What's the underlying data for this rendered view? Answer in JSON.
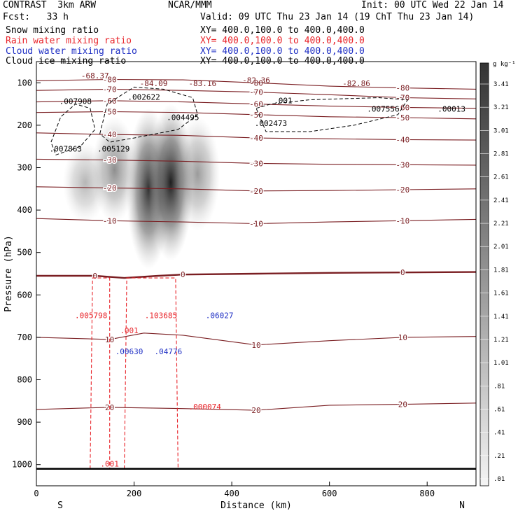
{
  "header": {
    "model": "CONTRAST  3km ARW",
    "org": "NCAR/MMM",
    "init": "Init: 00 UTC Wed 22 Jan 14",
    "fcst": "Fcst:   33 h",
    "valid": "Valid: 09 UTC Thu 23 Jan 14 (19 ChT Thu 23 Jan 14)"
  },
  "fields": [
    {
      "name": "Snow mixing ratio",
      "xy": "XY= 400.0,100.0 to 400.0,400.0",
      "color": "#000000"
    },
    {
      "name": "Rain water mixing ratio",
      "xy": "XY= 400.0,100.0 to 400.0,400.0",
      "color": "#e8242a"
    },
    {
      "name": "Cloud water mixing ratio",
      "xy": "XY= 400.0,100.0 to 400.0,400.0",
      "color": "#1f2fc4"
    },
    {
      "name": "Cloud ice mixing ratio",
      "xy": "XY= 400.0,100.0 to 400.0,400.0",
      "color": "#000000"
    }
  ],
  "chart_data": {
    "type": "heatmap",
    "xlabel": "Distance (km)",
    "ylabel": "Pressure (hPa)",
    "x_ticks": [
      0,
      200,
      400,
      600,
      800
    ],
    "y_ticks": [
      100,
      200,
      300,
      400,
      500,
      600,
      700,
      800,
      900,
      1000
    ],
    "xlim": [
      0,
      900
    ],
    "ylim": [
      1050,
      50
    ],
    "x_end_labels": {
      "left": "S",
      "right": "N"
    },
    "colorbar": {
      "unit": "g kg⁻¹",
      "labels": [
        "3.41",
        "3.21",
        "3.01",
        "2.81",
        "2.61",
        "2.41",
        "2.21",
        "2.01",
        "1.81",
        "1.61",
        "1.41",
        "1.21",
        "1.01",
        ".81",
        ".61",
        ".41",
        ".21",
        ".01"
      ]
    },
    "snow_cores": [
      {
        "x": 100,
        "p_top": 240,
        "p_bottom": 430,
        "peak": 0.6
      },
      {
        "x": 160,
        "p_top": 180,
        "p_bottom": 430,
        "peak": 1.2
      },
      {
        "x": 230,
        "p_top": 160,
        "p_bottom": 540,
        "peak": 2.6
      },
      {
        "x": 275,
        "p_top": 150,
        "p_bottom": 520,
        "peak": 3.2
      },
      {
        "x": 330,
        "p_top": 180,
        "p_bottom": 450,
        "peak": 1.0
      }
    ],
    "temperature_contours": [
      {
        "label": "-80",
        "points": [
          [
            0,
            95
          ],
          [
            150,
            92
          ],
          [
            300,
            93
          ],
          [
            450,
            100
          ],
          [
            600,
            108
          ],
          [
            750,
            112
          ],
          [
            900,
            115
          ]
        ]
      },
      {
        "label": "-70",
        "points": [
          [
            0,
            118
          ],
          [
            150,
            115
          ],
          [
            300,
            118
          ],
          [
            450,
            122
          ],
          [
            600,
            128
          ],
          [
            750,
            135
          ],
          [
            900,
            138
          ]
        ]
      },
      {
        "label": "-60",
        "points": [
          [
            0,
            145
          ],
          [
            150,
            142
          ],
          [
            300,
            145
          ],
          [
            450,
            150
          ],
          [
            600,
            155
          ],
          [
            750,
            158
          ],
          [
            900,
            160
          ]
        ]
      },
      {
        "label": "-50",
        "points": [
          [
            0,
            170
          ],
          [
            150,
            168
          ],
          [
            300,
            170
          ],
          [
            450,
            175
          ],
          [
            600,
            180
          ],
          [
            750,
            182
          ],
          [
            900,
            185
          ]
        ]
      },
      {
        "label": "-40",
        "points": [
          [
            0,
            218
          ],
          [
            150,
            222
          ],
          [
            300,
            224
          ],
          [
            450,
            230
          ],
          [
            600,
            232
          ],
          [
            750,
            234
          ],
          [
            900,
            235
          ]
        ]
      },
      {
        "label": "-30",
        "points": [
          [
            0,
            280
          ],
          [
            150,
            282
          ],
          [
            300,
            285
          ],
          [
            450,
            290
          ],
          [
            600,
            292
          ],
          [
            750,
            293
          ],
          [
            900,
            294
          ]
        ]
      },
      {
        "label": "-20",
        "points": [
          [
            0,
            345
          ],
          [
            150,
            348
          ],
          [
            300,
            350
          ],
          [
            450,
            355
          ],
          [
            600,
            354
          ],
          [
            750,
            352
          ],
          [
            900,
            350
          ]
        ]
      },
      {
        "label": "-10",
        "points": [
          [
            0,
            420
          ],
          [
            150,
            425
          ],
          [
            300,
            428
          ],
          [
            450,
            432
          ],
          [
            600,
            428
          ],
          [
            750,
            425
          ],
          [
            900,
            422
          ]
        ]
      },
      {
        "label": "0",
        "points": [
          [
            0,
            555
          ],
          [
            120,
            555
          ],
          [
            180,
            560
          ],
          [
            250,
            555
          ],
          [
            300,
            552
          ],
          [
            450,
            550
          ],
          [
            600,
            548
          ],
          [
            750,
            547
          ],
          [
            900,
            546
          ]
        ]
      },
      {
        "label": "10",
        "points": [
          [
            0,
            700
          ],
          [
            150,
            705
          ],
          [
            220,
            690
          ],
          [
            300,
            695
          ],
          [
            450,
            718
          ],
          [
            600,
            708
          ],
          [
            750,
            700
          ],
          [
            900,
            698
          ]
        ]
      },
      {
        "label": "20",
        "points": [
          [
            0,
            870
          ],
          [
            150,
            865
          ],
          [
            300,
            868
          ],
          [
            450,
            872
          ],
          [
            600,
            860
          ],
          [
            750,
            858
          ],
          [
            900,
            855
          ]
        ]
      }
    ],
    "rain_regions": [
      {
        "points": [
          [
            110,
            1010
          ],
          [
            115,
            560
          ],
          [
            150,
            560
          ],
          [
            150,
            1010
          ]
        ]
      },
      {
        "points": [
          [
            180,
            1010
          ],
          [
            185,
            560
          ],
          [
            285,
            560
          ],
          [
            290,
            1010
          ]
        ]
      }
    ],
    "cloud_ice_regions": [
      {
        "points": [
          [
            30,
            240
          ],
          [
            50,
            180
          ],
          [
            80,
            150
          ],
          [
            110,
            160
          ],
          [
            120,
            210
          ],
          [
            90,
            250
          ],
          [
            40,
            270
          ]
        ]
      },
      {
        "points": [
          [
            130,
            220
          ],
          [
            145,
            150
          ],
          [
            200,
            110
          ],
          [
            260,
            115
          ],
          [
            320,
            135
          ],
          [
            330,
            175
          ],
          [
            290,
            210
          ],
          [
            200,
            230
          ],
          [
            150,
            240
          ]
        ]
      },
      {
        "points": [
          [
            450,
            160
          ],
          [
            480,
            150
          ],
          [
            560,
            140
          ],
          [
            700,
            135
          ],
          [
            760,
            140
          ],
          [
            740,
            175
          ],
          [
            650,
            200
          ],
          [
            560,
            215
          ],
          [
            470,
            215
          ]
        ]
      }
    ],
    "annotations": [
      {
        "text": "-68.37",
        "x": 120,
        "p": 90,
        "color": "#7a1e22"
      },
      {
        "text": "-84.09",
        "x": 240,
        "p": 108,
        "color": "#7a1e22"
      },
      {
        "text": "-83.16",
        "x": 340,
        "p": 108,
        "color": "#7a1e22"
      },
      {
        "text": "-82.36",
        "x": 450,
        "p": 100,
        "color": "#7a1e22"
      },
      {
        "text": "-82.86",
        "x": 655,
        "p": 108,
        "color": "#7a1e22"
      },
      {
        "text": ".007908",
        "x": 80,
        "p": 150,
        "color": "#000000"
      },
      {
        "text": ".002622",
        "x": 220,
        "p": 140,
        "color": "#000000"
      },
      {
        "text": ".004495",
        "x": 300,
        "p": 188,
        "color": "#000000"
      },
      {
        "text": ".002473",
        "x": 480,
        "p": 202,
        "color": "#000000"
      },
      {
        "text": ".001",
        "x": 505,
        "p": 148,
        "color": "#000000"
      },
      {
        "text": ".007556",
        "x": 710,
        "p": 168,
        "color": "#000000"
      },
      {
        "text": ".00013",
        "x": 850,
        "p": 168,
        "color": "#000000"
      },
      {
        "text": ".007863",
        "x": 60,
        "p": 262,
        "color": "#000000"
      },
      {
        "text": ".005129",
        "x": 158,
        "p": 262,
        "color": "#000000"
      },
      {
        "text": ".005798",
        "x": 112,
        "p": 655,
        "color": "#e8242a"
      },
      {
        "text": ".103685",
        "x": 255,
        "p": 655,
        "color": "#e8242a"
      },
      {
        "text": ".001",
        "x": 190,
        "p": 690,
        "color": "#e8242a"
      },
      {
        "text": ".000074",
        "x": 345,
        "p": 870,
        "color": "#e8242a"
      },
      {
        "text": ".001",
        "x": 150,
        "p": 1005,
        "color": "#e8242a"
      },
      {
        "text": ".06027",
        "x": 375,
        "p": 655,
        "color": "#1f2fc4"
      },
      {
        "text": ".00630",
        "x": 190,
        "p": 740,
        "color": "#1f2fc4"
      },
      {
        "text": ".04776",
        "x": 270,
        "p": 740,
        "color": "#1f2fc4"
      }
    ]
  }
}
